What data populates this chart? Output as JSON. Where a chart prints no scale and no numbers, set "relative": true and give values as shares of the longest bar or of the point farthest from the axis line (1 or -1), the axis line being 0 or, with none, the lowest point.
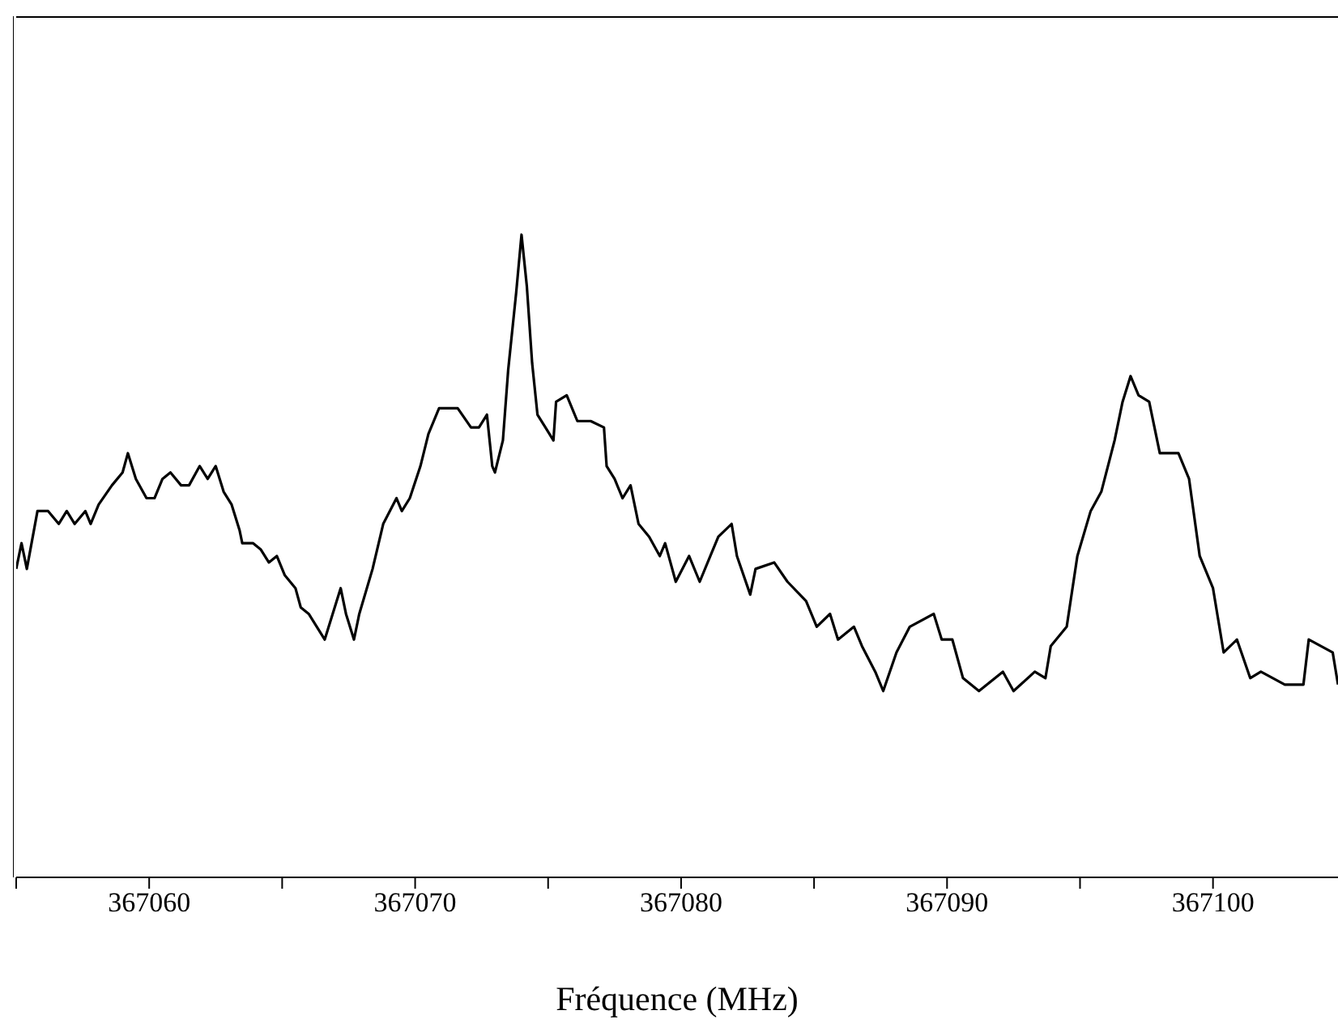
{
  "chart_data": {
    "type": "line",
    "xlabel": "Fréquence (MHz)",
    "relative": true,
    "xlim": [
      367055,
      367104.7
    ],
    "xticks": [
      {
        "value": 367055,
        "label": null
      },
      367060,
      {
        "value": 367065,
        "label": null
      },
      367070,
      {
        "value": 367075,
        "label": null
      },
      367080,
      {
        "value": 367085,
        "label": null
      },
      367090,
      {
        "value": 367095,
        "label": null
      },
      367100
    ],
    "grid": false,
    "legend": false,
    "marker": "none",
    "line_style": "solid",
    "series": [
      {
        "color": "#000000",
        "x": [
          367055.0,
          367055.2,
          367055.4,
          367055.8,
          367056.2,
          367056.6,
          367056.9,
          367057.2,
          367057.6,
          367057.8,
          367058.1,
          367058.6,
          367059.0,
          367059.2,
          367059.5,
          367059.9,
          367060.2,
          367060.5,
          367060.8,
          367061.2,
          367061.5,
          367061.9,
          367062.2,
          367062.5,
          367062.8,
          367063.1,
          367063.4,
          367063.5,
          367063.9,
          367064.2,
          367064.5,
          367064.8,
          367065.1,
          367065.5,
          367065.7,
          367066.0,
          367066.6,
          367066.9,
          367067.2,
          367067.4,
          367067.7,
          367067.9,
          367068.4,
          367068.8,
          367069.3,
          367069.5,
          367069.8,
          367070.2,
          367070.5,
          367070.9,
          367071.6,
          367072.1,
          367072.4,
          367072.7,
          367072.9,
          367073.0,
          367073.3,
          367073.5,
          367073.8,
          367074.0,
          367074.2,
          367074.4,
          367074.6,
          367074.9,
          367075.2,
          367075.3,
          367075.7,
          367076.1,
          367076.6,
          367077.1,
          367077.2,
          367077.5,
          367077.8,
          367078.1,
          367078.4,
          367078.8,
          367079.2,
          367079.4,
          367079.8,
          367080.3,
          367080.7,
          367081.1,
          367081.4,
          367081.9,
          367082.1,
          367082.6,
          367082.8,
          367083.5,
          367084.0,
          367084.7,
          367085.1,
          367085.6,
          367085.9,
          367086.5,
          367086.8,
          367087.3,
          367087.6,
          367088.1,
          367088.6,
          367089.5,
          367089.8,
          367090.2,
          367090.6,
          367091.2,
          367092.1,
          367092.5,
          367093.3,
          367093.7,
          367093.9,
          367094.5,
          367094.9,
          367095.4,
          367095.8,
          367096.3,
          367096.6,
          367096.9,
          367097.2,
          367097.6,
          367098.0,
          367098.7,
          367099.1,
          367099.5,
          367100.0,
          367100.4,
          367100.9,
          367101.4,
          367101.8,
          367102.7,
          367103.4,
          367103.6,
          367104.5,
          367104.7
        ],
        "values": [
          0.48,
          0.52,
          0.48,
          0.57,
          0.57,
          0.55,
          0.57,
          0.55,
          0.57,
          0.55,
          0.58,
          0.61,
          0.63,
          0.66,
          0.62,
          0.59,
          0.59,
          0.62,
          0.63,
          0.61,
          0.61,
          0.64,
          0.62,
          0.64,
          0.6,
          0.58,
          0.54,
          0.52,
          0.52,
          0.51,
          0.49,
          0.5,
          0.47,
          0.45,
          0.42,
          0.41,
          0.37,
          0.41,
          0.45,
          0.41,
          0.37,
          0.41,
          0.48,
          0.55,
          0.59,
          0.57,
          0.59,
          0.64,
          0.69,
          0.73,
          0.73,
          0.7,
          0.7,
          0.72,
          0.64,
          0.63,
          0.68,
          0.79,
          0.91,
          1.0,
          0.92,
          0.8,
          0.72,
          0.7,
          0.68,
          0.74,
          0.75,
          0.71,
          0.71,
          0.7,
          0.64,
          0.62,
          0.59,
          0.61,
          0.55,
          0.53,
          0.5,
          0.52,
          0.46,
          0.5,
          0.46,
          0.5,
          0.53,
          0.55,
          0.5,
          0.44,
          0.48,
          0.49,
          0.46,
          0.43,
          0.39,
          0.41,
          0.37,
          0.39,
          0.36,
          0.32,
          0.29,
          0.35,
          0.39,
          0.41,
          0.37,
          0.37,
          0.31,
          0.29,
          0.32,
          0.29,
          0.32,
          0.31,
          0.36,
          0.39,
          0.5,
          0.57,
          0.6,
          0.68,
          0.74,
          0.78,
          0.75,
          0.74,
          0.66,
          0.66,
          0.62,
          0.5,
          0.45,
          0.35,
          0.37,
          0.31,
          0.32,
          0.3,
          0.3,
          0.37,
          0.35,
          0.3
        ]
      }
    ]
  }
}
